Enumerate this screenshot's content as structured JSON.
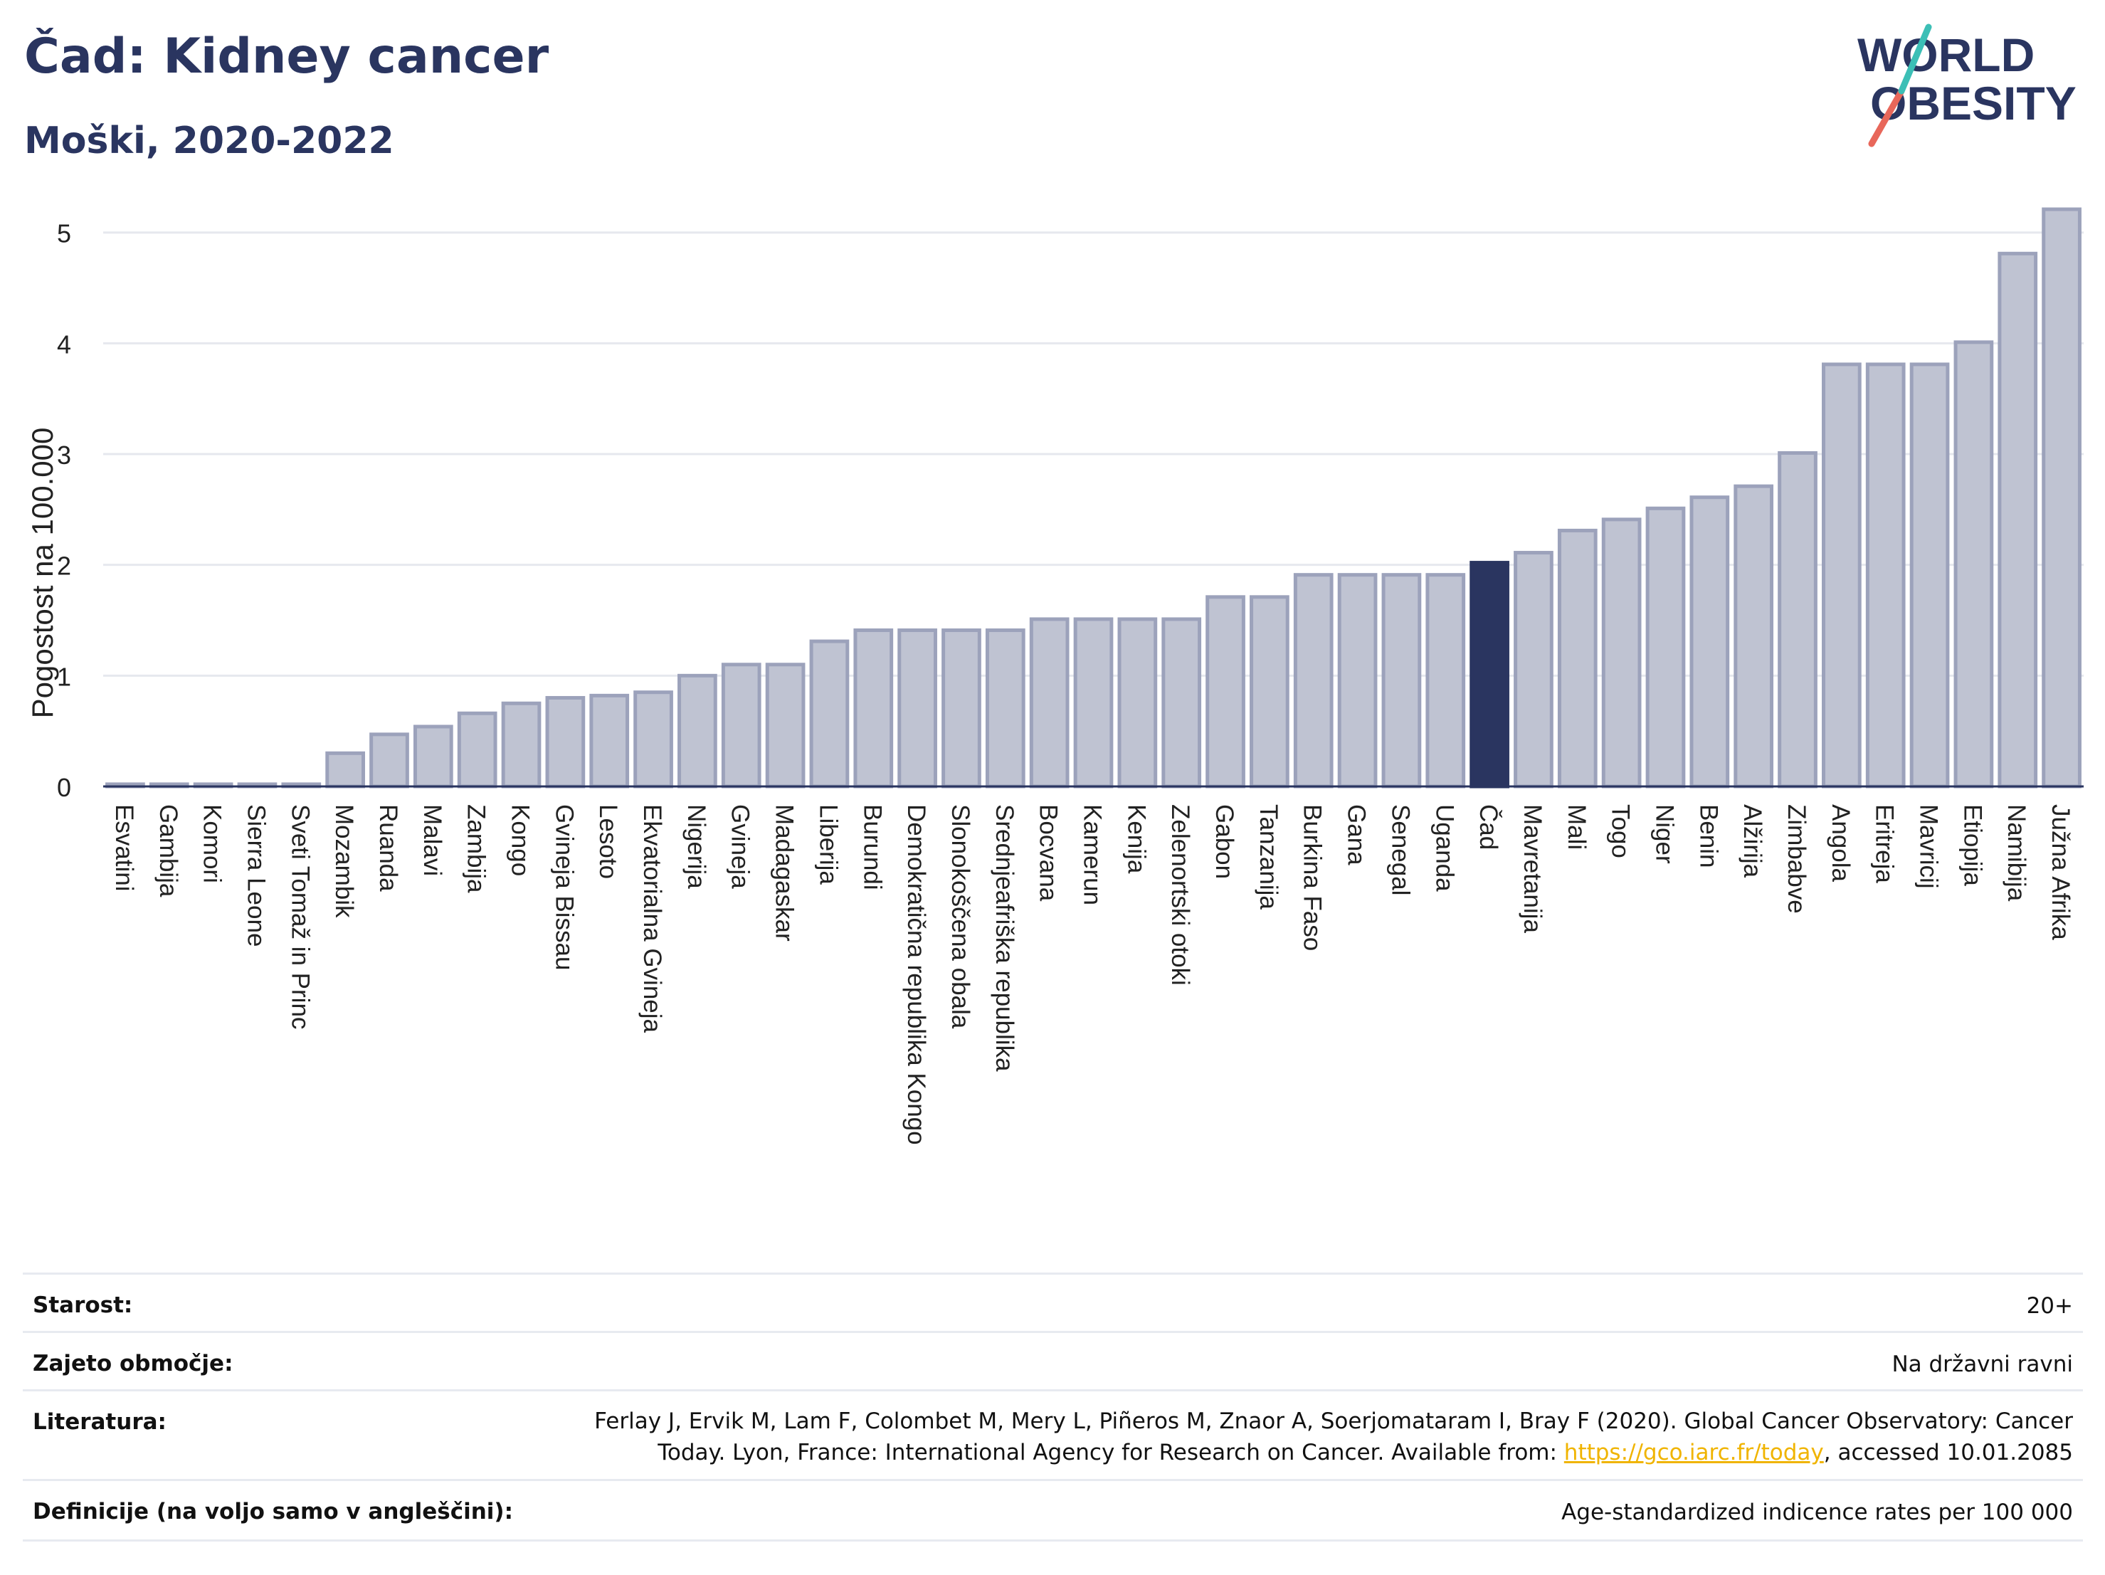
{
  "header": {
    "title": "Čad: Kidney cancer",
    "subtitle": "Moški, 2020-2022",
    "logo_line1": "WORLD",
    "logo_line2": "OBESITY"
  },
  "colors": {
    "bar_fill": "#bfc3d2",
    "bar_stroke": "#9ca2bb",
    "highlight": "#2a3560",
    "grid": "#e6e8ee",
    "logo_teal": "#3cbfb6",
    "logo_coral": "#e8675a"
  },
  "chart_data": {
    "type": "bar",
    "ylabel": "Pogostost na 100.000",
    "ylim": [
      0,
      5.3
    ],
    "yticks": [
      0,
      1,
      2,
      3,
      4,
      5
    ],
    "grid": true,
    "highlight_category": "Čad",
    "categories": [
      "Esvatini",
      "Gambija",
      "Komori",
      "Sierra Leone",
      "Sveti Tomaž in Princ",
      "Mozambik",
      "Ruanda",
      "Malavi",
      "Zambija",
      "Kongo",
      "Gvineja Bissau",
      "Lesoto",
      "Ekvatorialna Gvineja",
      "Nigerija",
      "Gvineja",
      "Madagaskar",
      "Liberija",
      "Burundi",
      "Demokratična republika Kongo",
      "Slonokoščena obala",
      "Srednjeafriška republika",
      "Bocvana",
      "Kamerun",
      "Kenija",
      "Zelenortski otoki",
      "Gabon",
      "Tanzanija",
      "Burkina Faso",
      "Gana",
      "Senegal",
      "Uganda",
      "Čad",
      "Mavretanija",
      "Mali",
      "Togo",
      "Niger",
      "Benin",
      "Alžirija",
      "Zimbabve",
      "Angola",
      "Eritreja",
      "Mavricij",
      "Etiopija",
      "Namibija",
      "Južna Afrika"
    ],
    "values": [
      0.02,
      0.02,
      0.02,
      0.02,
      0.02,
      0.3,
      0.47,
      0.54,
      0.66,
      0.75,
      0.8,
      0.82,
      0.85,
      1.0,
      1.1,
      1.1,
      1.31,
      1.41,
      1.41,
      1.41,
      1.41,
      1.51,
      1.51,
      1.51,
      1.51,
      1.71,
      1.71,
      1.91,
      1.91,
      1.91,
      1.91,
      2.02,
      2.11,
      2.31,
      2.41,
      2.51,
      2.61,
      2.71,
      3.01,
      3.81,
      3.81,
      3.81,
      4.01,
      4.81,
      5.21
    ]
  },
  "meta": {
    "age_label": "Starost:",
    "age_value": "20+",
    "area_label": "Zajeto območje:",
    "area_value": "Na državni ravni",
    "lit_label": "Literatura:",
    "lit_line1": "Ferlay J, Ervik M, Lam F, Colombet M, Mery L, Piñeros M, Znaor A, Soerjomataram I, Bray F (2020). Global Cancer Observatory: Cancer",
    "lit_line2_pre": "Today. Lyon, France: International Agency for Research on Cancer. Available from: ",
    "lit_link": "https://gco.iarc.fr/today",
    "lit_line2_post": ", accessed 10.01.2085",
    "def_label": "Definicije (na voljo samo v angleščini):",
    "def_value": "Age-standardized indicence rates per 100 000"
  }
}
